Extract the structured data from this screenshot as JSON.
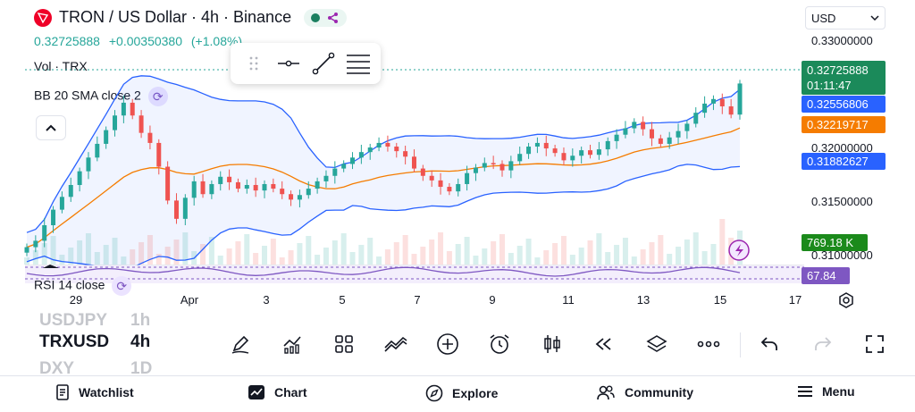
{
  "header": {
    "title": "TRON / US Dollar · 4h · Binance",
    "last_price": "0.32725888",
    "change": "+0.00350380",
    "change_pct": "(+1.08%)"
  },
  "indicators": {
    "volume_label": "Vol · TRX",
    "bb_label": "BB 20 SMA close 2",
    "rsi_label": "RSI 14 close"
  },
  "currency_select": {
    "value": "USD"
  },
  "price_axis": {
    "ticks": [
      "0.33000000",
      "0.32000000",
      "0.31500000",
      "0.31000000"
    ]
  },
  "price_tags": {
    "last": "0.32725888",
    "countdown": "01:11:47",
    "bb_upper": "0.32556806",
    "bb_basis": "0.32219717",
    "bb_lower": "0.31882627",
    "volume": "769.18 K",
    "rsi": "67.84"
  },
  "time_axis": [
    "29",
    "Apr",
    "3",
    "5",
    "7",
    "9",
    "11",
    "13",
    "15",
    "17"
  ],
  "symbol_bar": {
    "prev_symbol": "USDJPY",
    "prev_interval": "1h",
    "symbol": "TRXUSD",
    "interval": "4h",
    "next_symbol": "DXY",
    "next_interval": "1D"
  },
  "bottom_nav": {
    "watchlist": "Watchlist",
    "chart": "Chart",
    "explore": "Explore",
    "community": "Community",
    "menu": "Menu"
  },
  "colors": {
    "up": "#26a69a",
    "down": "#ef5350",
    "bb_band": "#2962ff",
    "bb_basis": "#f57c00",
    "last_tag": "#1b8a5a",
    "rsi": "#7e57c2"
  },
  "chart_data": {
    "type": "candlestick",
    "symbol": "TRXUSD",
    "interval": "4h",
    "y_range": [
      0.3075,
      0.3335
    ],
    "x_labels": [
      "29",
      "Apr",
      "3",
      "5",
      "7",
      "9",
      "11",
      "13",
      "15",
      "17"
    ],
    "candles_close": [
      0.3094,
      0.3101,
      0.3118,
      0.3135,
      0.3149,
      0.3162,
      0.3177,
      0.3192,
      0.3207,
      0.3222,
      0.3238,
      0.3252,
      0.3238,
      0.3219,
      0.3208,
      0.3182,
      0.3145,
      0.3125,
      0.3148,
      0.3166,
      0.3152,
      0.3163,
      0.3171,
      0.3165,
      0.3158,
      0.3162,
      0.3156,
      0.3163,
      0.3158,
      0.3152,
      0.3146,
      0.3151,
      0.3158,
      0.3166,
      0.3172,
      0.318,
      0.3185,
      0.3192,
      0.3198,
      0.3203,
      0.3208,
      0.3204,
      0.3199,
      0.3193,
      0.318,
      0.3172,
      0.3167,
      0.316,
      0.3155,
      0.3163,
      0.3175,
      0.3181,
      0.3186,
      0.3185,
      0.3178,
      0.3188,
      0.3196,
      0.3204,
      0.3208,
      0.3202,
      0.3197,
      0.3189,
      0.3194,
      0.32,
      0.3195,
      0.3201,
      0.321,
      0.3217,
      0.3224,
      0.3231,
      0.3223,
      0.3213,
      0.3207,
      0.3214,
      0.3221,
      0.3229,
      0.3241,
      0.3251,
      0.3256,
      0.3248,
      0.3239,
      0.3273
    ]
  }
}
